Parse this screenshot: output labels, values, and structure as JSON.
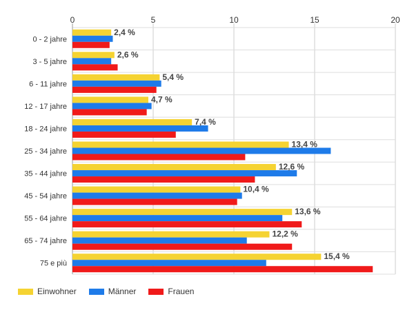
{
  "chart_data": {
    "type": "bar",
    "orientation": "horizontal",
    "categories": [
      "0 - 2 jahre",
      "3 - 5 jahre",
      "6 - 11 jahre",
      "12 - 17 jahre",
      "18 - 24 jahre",
      "25 - 34 jahre",
      "35 - 44 jahre",
      "45 - 54 jahre",
      "55 - 64 jahre",
      "65 - 74 jahre",
      "75 e più"
    ],
    "series": [
      {
        "name": "Einwohner",
        "color": "#f5d332",
        "values": [
          2.4,
          2.6,
          5.4,
          4.7,
          7.4,
          13.4,
          12.6,
          10.4,
          13.6,
          12.2,
          15.4
        ]
      },
      {
        "name": "Männer",
        "color": "#1e7be9",
        "values": [
          2.5,
          2.4,
          5.5,
          4.9,
          8.4,
          16.0,
          13.9,
          10.5,
          13.0,
          10.8,
          12.0
        ]
      },
      {
        "name": "Frauen",
        "color": "#f01a1a",
        "values": [
          2.3,
          2.8,
          5.2,
          4.6,
          6.4,
          10.7,
          11.3,
          10.2,
          14.2,
          13.6,
          18.6
        ]
      }
    ],
    "data_labels": [
      "2,4 %",
      "2,6 %",
      "5,4 %",
      "4,7 %",
      "7,4 %",
      "13,4 %",
      "12,6 %",
      "10,4 %",
      "13,6 %",
      "12,2 %",
      "15,4 %"
    ],
    "xlim": [
      0,
      20
    ],
    "x_ticks": [
      "0",
      "5",
      "10",
      "15",
      "20"
    ],
    "grid": true,
    "legend_position": "bottom-left"
  }
}
